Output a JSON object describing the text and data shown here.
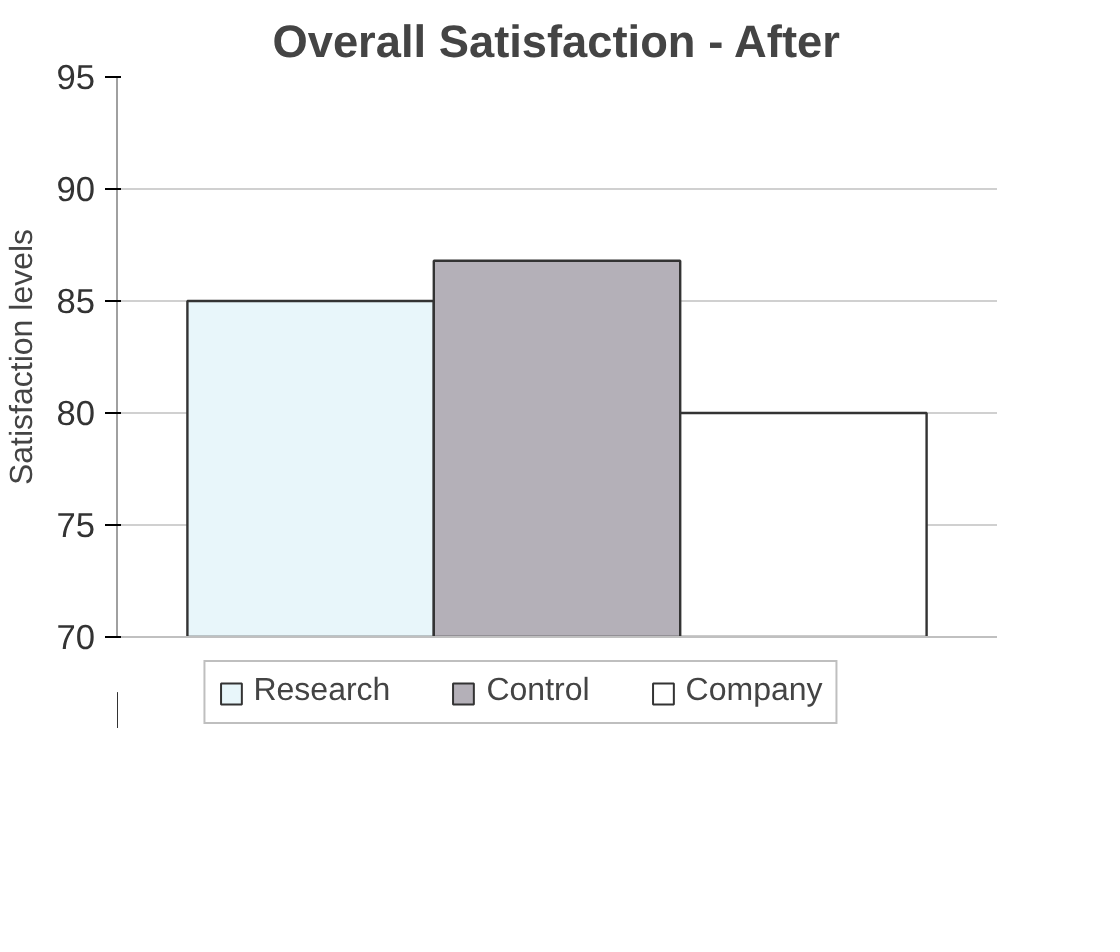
{
  "chart_data": {
    "type": "bar",
    "title": "Overall Satisfaction - After",
    "ylabel": "Satisfaction levels",
    "categories": [
      null
    ],
    "series": [
      {
        "name": "Research",
        "color": "#e8f6fa",
        "values": [
          85
        ]
      },
      {
        "name": "Control",
        "color": "#b4b0b8",
        "values": [
          86.8
        ]
      },
      {
        "name": "Company",
        "color": "#ffffff",
        "values": [
          80
        ]
      }
    ],
    "ylim": [
      70,
      95
    ],
    "yticks": [
      70,
      75,
      80,
      85,
      90,
      95
    ],
    "grid": "y",
    "legend": "bottom"
  }
}
